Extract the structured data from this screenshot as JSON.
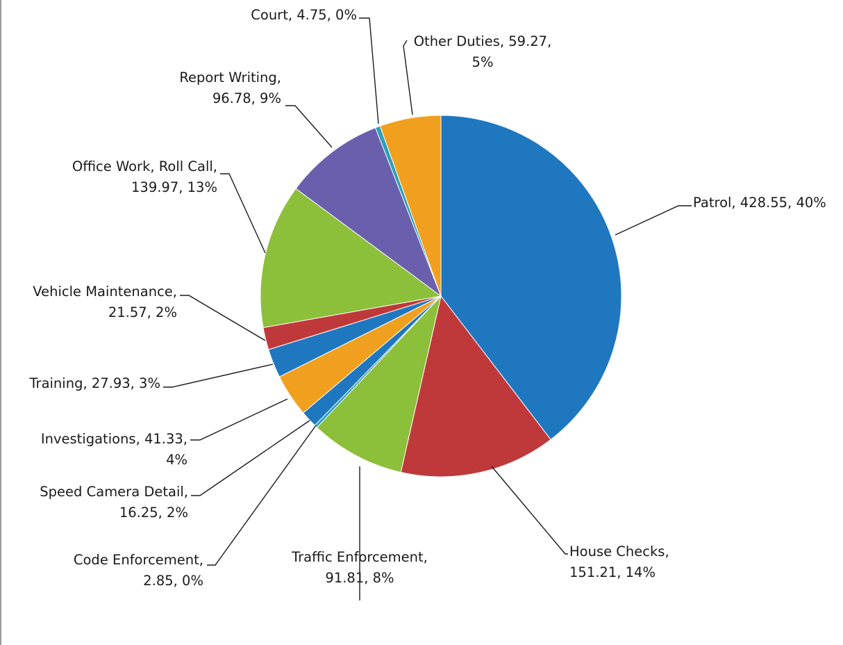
{
  "chart_data": {
    "type": "pie",
    "title": "",
    "slices": [
      {
        "label": "Patrol, 428.55, 40%",
        "category": "Patrol",
        "value": 428.55,
        "percent": 40,
        "color": "#1f77c0"
      },
      {
        "label": "House Checks, 151.21, 14%",
        "category": "House Checks",
        "value": 151.21,
        "percent": 14,
        "color": "#c0393a"
      },
      {
        "label": "Traffic Enforcement, 91.81, 8%",
        "category": "Traffic Enforcement",
        "value": 91.81,
        "percent": 8,
        "color": "#8cbf3a"
      },
      {
        "label": "Code Enforcement, 2.85, 0%",
        "category": "Code Enforcement",
        "value": 2.85,
        "percent": 0,
        "color": "#2aa0b8"
      },
      {
        "label": "Speed Camera Detail, 16.25, 2%",
        "category": "Speed Camera Detail",
        "value": 16.25,
        "percent": 2,
        "color": "#1f77c0"
      },
      {
        "label": "Investigations, 41.33, 4%",
        "category": "Investigations",
        "value": 41.33,
        "percent": 4,
        "color": "#f0a01e"
      },
      {
        "label": "Training, 27.93, 3%",
        "category": "Training",
        "value": 27.93,
        "percent": 3,
        "color": "#1f77c0"
      },
      {
        "label": "Vehicle Maintenance, 21.57, 2%",
        "category": "Vehicle Maintenance",
        "value": 21.57,
        "percent": 2,
        "color": "#c0393a"
      },
      {
        "label": "Office Work, Roll Call, 139.97, 13%",
        "category": "Office Work, Roll Call",
        "value": 139.97,
        "percent": 13,
        "color": "#8cbf3a"
      },
      {
        "label": "Report Writing, 96.78, 9%",
        "category": "Report Writing",
        "value": 96.78,
        "percent": 9,
        "color": "#6a5fad"
      },
      {
        "label": "Court, 4.75, 0%",
        "category": "Court",
        "value": 4.75,
        "percent": 0,
        "color": "#2aa0b8"
      },
      {
        "label": "Other Duties, 59.27, 5%",
        "category": "Other Duties",
        "value": 59.27,
        "percent": 5,
        "color": "#f0a01e"
      }
    ],
    "legend": "none",
    "data_labels": "outside-with-leader-lines"
  }
}
